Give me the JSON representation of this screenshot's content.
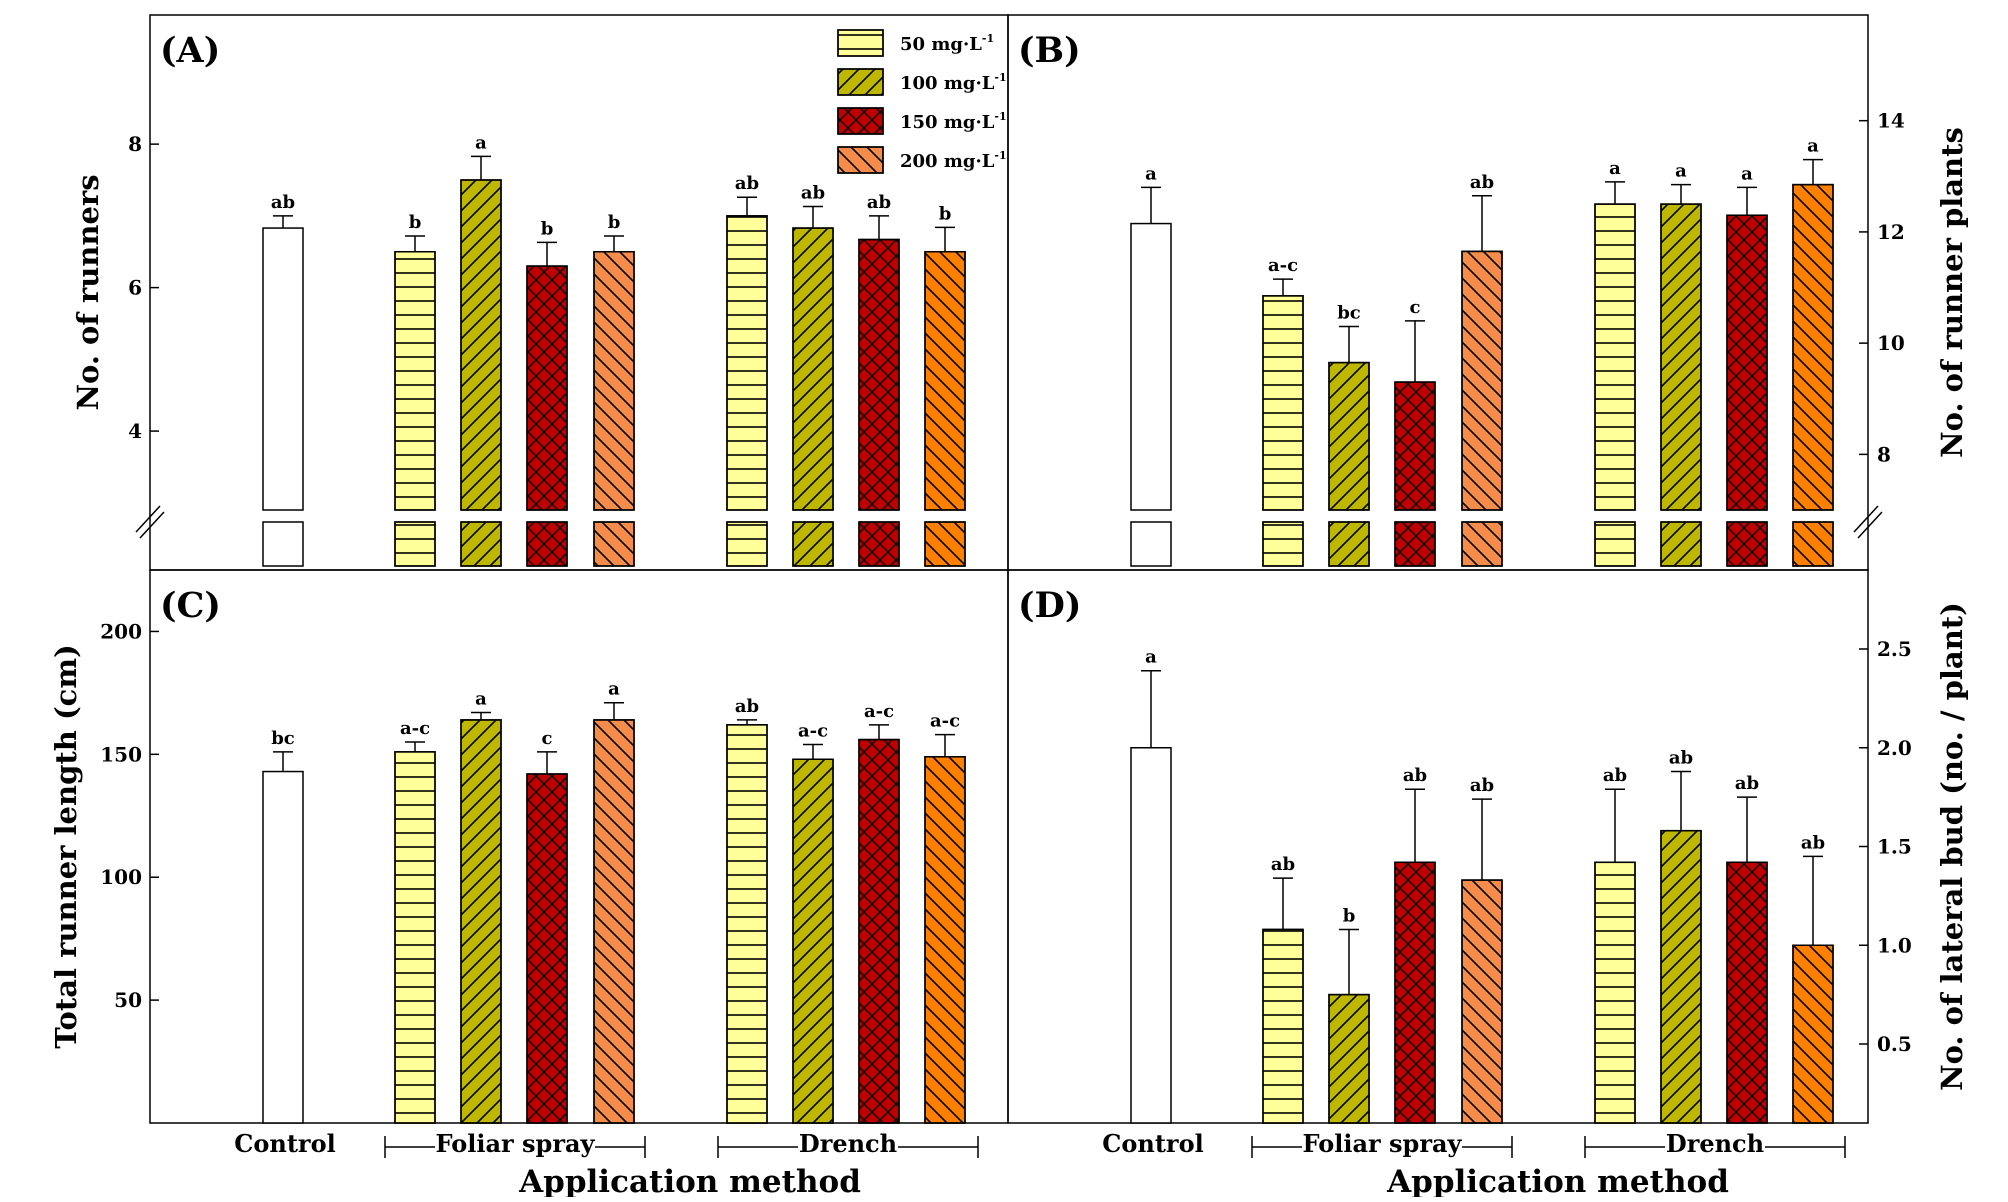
{
  "figure": {
    "x_axis_title": "Application method",
    "groups": [
      "Control",
      "Foliar spray",
      "Drench"
    ],
    "legend": [
      {
        "label": "50 mg·L",
        "superscript": "-1"
      },
      {
        "label": "100 mg·L",
        "superscript": "-1"
      },
      {
        "label": "150 mg·L",
        "superscript": "-1"
      },
      {
        "label": "200 mg·L",
        "superscript": "-1"
      }
    ],
    "colors": {
      "control": "#ffffff",
      "c50": "#ffff99",
      "c100": "#bdb700",
      "c150": "#c00000",
      "c200": "#f58c4b",
      "c200_drench": "#ff8000"
    }
  },
  "chart_data": [
    {
      "panel": "(A)",
      "type": "bar",
      "ylabel": "No. of runners",
      "axis_side": "left",
      "ylim": [
        2.9,
        9.8
      ],
      "yticks": [
        4,
        6,
        8
      ],
      "y_break": true,
      "bars": [
        {
          "group": "Control",
          "conc": "none",
          "value": 6.83,
          "err": 0.17,
          "sig": "ab"
        },
        {
          "group": "Foliar spray",
          "conc": "50",
          "value": 6.5,
          "err": 0.22,
          "sig": "b"
        },
        {
          "group": "Foliar spray",
          "conc": "100",
          "value": 7.5,
          "err": 0.33,
          "sig": "a"
        },
        {
          "group": "Foliar spray",
          "conc": "150",
          "value": 6.3,
          "err": 0.33,
          "sig": "b"
        },
        {
          "group": "Foliar spray",
          "conc": "200",
          "value": 6.5,
          "err": 0.22,
          "sig": "b"
        },
        {
          "group": "Drench",
          "conc": "50",
          "value": 7.0,
          "err": 0.26,
          "sig": "ab"
        },
        {
          "group": "Drench",
          "conc": "100",
          "value": 6.83,
          "err": 0.3,
          "sig": "ab"
        },
        {
          "group": "Drench",
          "conc": "150",
          "value": 6.67,
          "err": 0.33,
          "sig": "ab"
        },
        {
          "group": "Drench",
          "conc": "200",
          "value": 6.5,
          "err": 0.34,
          "sig": "b"
        }
      ]
    },
    {
      "panel": "(B)",
      "type": "bar",
      "ylabel": "No. of runner plants",
      "axis_side": "right",
      "ylim": [
        7.0,
        15.9
      ],
      "yticks": [
        8,
        10,
        12,
        14
      ],
      "y_break": true,
      "bars": [
        {
          "group": "Control",
          "conc": "none",
          "value": 12.15,
          "err": 0.65,
          "sig": "a"
        },
        {
          "group": "Foliar spray",
          "conc": "50",
          "value": 10.85,
          "err": 0.3,
          "sig": "a-c"
        },
        {
          "group": "Foliar spray",
          "conc": "100",
          "value": 9.65,
          "err": 0.65,
          "sig": "bc"
        },
        {
          "group": "Foliar spray",
          "conc": "150",
          "value": 9.3,
          "err": 1.1,
          "sig": "c"
        },
        {
          "group": "Foliar spray",
          "conc": "200",
          "value": 11.65,
          "err": 1.0,
          "sig": "ab"
        },
        {
          "group": "Drench",
          "conc": "50",
          "value": 12.5,
          "err": 0.4,
          "sig": "a"
        },
        {
          "group": "Drench",
          "conc": "100",
          "value": 12.5,
          "err": 0.35,
          "sig": "a"
        },
        {
          "group": "Drench",
          "conc": "150",
          "value": 12.3,
          "err": 0.5,
          "sig": "a"
        },
        {
          "group": "Drench",
          "conc": "200",
          "value": 12.85,
          "err": 0.45,
          "sig": "a"
        }
      ]
    },
    {
      "panel": "(C)",
      "type": "bar",
      "ylabel": "Total runner length (cm)",
      "axis_side": "left",
      "ylim": [
        0,
        225
      ],
      "yticks": [
        50,
        100,
        150,
        200
      ],
      "y_break": false,
      "bars": [
        {
          "group": "Control",
          "conc": "none",
          "value": 143,
          "err": 8,
          "sig": "bc"
        },
        {
          "group": "Foliar spray",
          "conc": "50",
          "value": 151,
          "err": 4,
          "sig": "a-c"
        },
        {
          "group": "Foliar spray",
          "conc": "100",
          "value": 164,
          "err": 3,
          "sig": "a"
        },
        {
          "group": "Foliar spray",
          "conc": "150",
          "value": 142,
          "err": 9,
          "sig": "c"
        },
        {
          "group": "Foliar spray",
          "conc": "200",
          "value": 164,
          "err": 7,
          "sig": "a"
        },
        {
          "group": "Drench",
          "conc": "50",
          "value": 162,
          "err": 2,
          "sig": "ab"
        },
        {
          "group": "Drench",
          "conc": "100",
          "value": 148,
          "err": 6,
          "sig": "a-c"
        },
        {
          "group": "Drench",
          "conc": "150",
          "value": 156,
          "err": 6,
          "sig": "a-c"
        },
        {
          "group": "Drench",
          "conc": "200",
          "value": 149,
          "err": 9,
          "sig": "a-c"
        }
      ]
    },
    {
      "panel": "(D)",
      "type": "bar",
      "ylabel": "No. of lateral bud (no. / plant)",
      "axis_side": "right",
      "ylim": [
        0.1,
        2.9
      ],
      "yticks": [
        0.5,
        1.0,
        1.5,
        2.0,
        2.5
      ],
      "y_break": false,
      "bars": [
        {
          "group": "Control",
          "conc": "none",
          "value": 2.0,
          "err": 0.39,
          "sig": "a"
        },
        {
          "group": "Foliar spray",
          "conc": "50",
          "value": 1.08,
          "err": 0.26,
          "sig": "ab"
        },
        {
          "group": "Foliar spray",
          "conc": "100",
          "value": 0.75,
          "err": 0.33,
          "sig": "b"
        },
        {
          "group": "Foliar spray",
          "conc": "150",
          "value": 1.42,
          "err": 0.37,
          "sig": "ab"
        },
        {
          "group": "Foliar spray",
          "conc": "200",
          "value": 1.33,
          "err": 0.41,
          "sig": "ab"
        },
        {
          "group": "Drench",
          "conc": "50",
          "value": 1.42,
          "err": 0.37,
          "sig": "ab"
        },
        {
          "group": "Drench",
          "conc": "100",
          "value": 1.58,
          "err": 0.3,
          "sig": "ab"
        },
        {
          "group": "Drench",
          "conc": "150",
          "value": 1.42,
          "err": 0.33,
          "sig": "ab"
        },
        {
          "group": "Drench",
          "conc": "200",
          "value": 1.0,
          "err": 0.45,
          "sig": "ab"
        }
      ]
    }
  ]
}
